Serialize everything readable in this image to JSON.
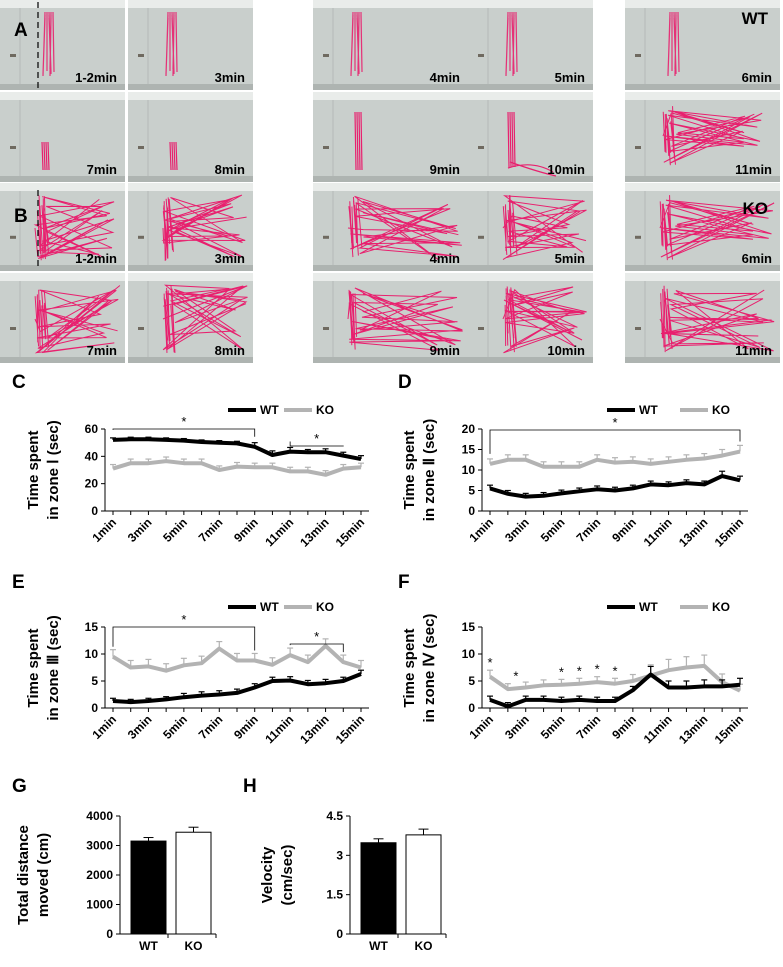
{
  "panel_a": {
    "label": "A",
    "group": "WT",
    "tiles": [
      "1-2min",
      "3min",
      "4min",
      "5min",
      "6min",
      "7min",
      "8min",
      "9min",
      "10min",
      "11min"
    ]
  },
  "panel_b": {
    "label": "B",
    "group": "KO",
    "tiles": [
      "1-2min",
      "3min",
      "4min",
      "5min",
      "6min",
      "7min",
      "8min",
      "9min",
      "10min",
      "11min"
    ]
  },
  "colors": {
    "track": "#e8206e",
    "wt": "#000000",
    "ko": "#b3b3b3"
  },
  "chart_data": [
    {
      "id": "C",
      "type": "line",
      "label": "C",
      "ylabel": [
        "Time spent",
        "in zone Ⅰ (sec)"
      ],
      "ylim": [
        0,
        60
      ],
      "yticks": [
        "0",
        "20",
        "40",
        "60"
      ],
      "x": [
        1,
        2,
        3,
        4,
        5,
        6,
        7,
        8,
        9,
        10,
        11,
        12,
        13,
        14,
        15
      ],
      "xticklabels": [
        "1min",
        "3min",
        "5min",
        "7min",
        "9min",
        "11min",
        "13min",
        "15min"
      ],
      "series": [
        {
          "name": "WT",
          "values": [
            52,
            52.5,
            52.5,
            52,
            51.5,
            50.5,
            50,
            49.5,
            47,
            41,
            43.5,
            43,
            43,
            40.5,
            38
          ],
          "err": [
            1.5,
            1.5,
            1.5,
            1.5,
            1.5,
            1.5,
            1.5,
            1.5,
            3,
            3,
            3,
            2,
            2.5,
            2.5,
            2.5
          ]
        },
        {
          "name": "KO",
          "values": [
            31,
            35,
            35,
            36.5,
            35,
            35,
            30,
            32.5,
            32,
            32,
            29,
            29,
            26.5,
            31,
            32
          ],
          "err": [
            3,
            3,
            3,
            3,
            3,
            3,
            3,
            3,
            3,
            3,
            3,
            3,
            3,
            3,
            3
          ]
        }
      ],
      "sig": [
        {
          "from": 1,
          "to": 9,
          "text": "*"
        },
        {
          "from": 11,
          "to": 14,
          "text": "*"
        }
      ],
      "legend": "top-right"
    },
    {
      "id": "D",
      "type": "line",
      "label": "D",
      "ylabel": [
        "Time spent",
        "in zone Ⅱ (sec)"
      ],
      "ylim": [
        0,
        20
      ],
      "yticks": [
        "0",
        "5",
        "10",
        "15",
        "20"
      ],
      "x": [
        1,
        2,
        3,
        4,
        5,
        6,
        7,
        8,
        9,
        10,
        11,
        12,
        13,
        14,
        15
      ],
      "xticklabels": [
        "1min",
        "3min",
        "5min",
        "7min",
        "9min",
        "11min",
        "13min",
        "15min"
      ],
      "series": [
        {
          "name": "WT",
          "values": [
            5.5,
            4.2,
            3.5,
            3.7,
            4.3,
            4.8,
            5.3,
            5,
            5.5,
            6.5,
            6.3,
            6.8,
            6.5,
            8.5,
            7.5
          ],
          "err": [
            0.8,
            0.8,
            0.8,
            0.8,
            0.8,
            0.8,
            0.8,
            0.8,
            0.8,
            0.8,
            0.8,
            0.8,
            0.8,
            1.2,
            1.0
          ]
        },
        {
          "name": "KO",
          "values": [
            11.5,
            12.5,
            12.5,
            10.8,
            10.8,
            10.8,
            12.5,
            11.8,
            12,
            11.5,
            12,
            12.5,
            12.8,
            13.5,
            14.5
          ],
          "err": [
            1.2,
            1.2,
            1.2,
            1.2,
            1.2,
            1.2,
            1.2,
            1.2,
            1.2,
            1.2,
            1.2,
            1.2,
            1.2,
            1.5,
            1.5
          ]
        }
      ],
      "sig": [
        {
          "from": 1,
          "to": 15,
          "text": "*"
        }
      ],
      "legend": "top-right"
    },
    {
      "id": "E",
      "type": "line",
      "label": "E",
      "ylabel": [
        "Time spent",
        "in zone Ⅲ (sec)"
      ],
      "ylim": [
        0,
        15
      ],
      "yticks": [
        "0",
        "5",
        "10",
        "15"
      ],
      "x": [
        1,
        2,
        3,
        4,
        5,
        6,
        7,
        8,
        9,
        10,
        11,
        12,
        13,
        14,
        15
      ],
      "xticklabels": [
        "1min",
        "3min",
        "5min",
        "7min",
        "9min",
        "11min",
        "13min",
        "15min"
      ],
      "series": [
        {
          "name": "WT",
          "values": [
            1.3,
            1.1,
            1.3,
            1.6,
            2,
            2.3,
            2.5,
            2.8,
            3.8,
            5,
            5.1,
            4.4,
            4.6,
            5,
            6.3
          ],
          "err": [
            0.5,
            0.5,
            0.5,
            0.5,
            0.7,
            0.7,
            0.7,
            0.7,
            0.7,
            0.7,
            0.7,
            0.7,
            0.7,
            0.7,
            0.7
          ]
        },
        {
          "name": "KO",
          "values": [
            9.5,
            7.5,
            7.7,
            6.9,
            7.9,
            8.3,
            11,
            8.8,
            8.8,
            8,
            9.8,
            8.5,
            11.5,
            8.5,
            7.5
          ],
          "err": [
            1.3,
            1.3,
            1.3,
            1.3,
            1.3,
            1.3,
            1.3,
            1.3,
            1.3,
            1.3,
            1.3,
            1.3,
            1.3,
            1.3,
            1.3
          ]
        }
      ],
      "sig": [
        {
          "from": 1,
          "to": 9,
          "text": "*"
        },
        {
          "from": 11,
          "to": 14,
          "text": "*"
        }
      ],
      "legend": "top-right"
    },
    {
      "id": "F",
      "type": "line",
      "label": "F",
      "ylabel": [
        "Time spent",
        "in zone Ⅳ (sec)"
      ],
      "ylim": [
        0,
        15
      ],
      "yticks": [
        "0",
        "5",
        "10",
        "15"
      ],
      "x": [
        1,
        2,
        3,
        4,
        5,
        6,
        7,
        8,
        9,
        10,
        11,
        12,
        13,
        14,
        15
      ],
      "xticklabels": [
        "1min",
        "3min",
        "5min",
        "7min",
        "9min",
        "11min",
        "13min",
        "15min"
      ],
      "series": [
        {
          "name": "WT",
          "values": [
            1.5,
            0.3,
            1.5,
            1.5,
            1.3,
            1.5,
            1.3,
            1.3,
            3.3,
            6.2,
            3.8,
            3.8,
            4,
            4,
            4.3
          ],
          "err": [
            0.7,
            0.7,
            0.7,
            0.7,
            0.7,
            0.7,
            0.7,
            0.7,
            0.7,
            1.5,
            1.2,
            1.2,
            1.2,
            1.2,
            1.2
          ]
        },
        {
          "name": "KO",
          "values": [
            5.8,
            3.5,
            3.8,
            4.2,
            4.3,
            4.5,
            4.8,
            4.5,
            5,
            6,
            7,
            7.5,
            7.8,
            4.8,
            3.2
          ],
          "err": [
            1.2,
            1,
            1,
            1,
            1,
            1,
            1,
            1,
            1.2,
            2,
            2,
            2,
            2,
            1.5,
            1.2
          ]
        }
      ],
      "sig_points": [
        {
          "x": 1,
          "text": "*"
        },
        {
          "x": 2,
          "text": "*"
        },
        {
          "x": 5,
          "text": "*"
        },
        {
          "x": 6,
          "text": "*"
        },
        {
          "x": 7,
          "text": "*"
        },
        {
          "x": 8,
          "text": "*"
        }
      ],
      "legend": "top-right"
    },
    {
      "id": "G",
      "type": "bar",
      "label": "G",
      "ylabel": [
        "Total distance",
        "moved (cm)"
      ],
      "ylim": [
        0,
        4000
      ],
      "yticks": [
        "0",
        "1000",
        "2000",
        "3000",
        "4000"
      ],
      "categories": [
        "WT",
        "KO"
      ],
      "values": [
        3150,
        3450
      ],
      "err": [
        120,
        170
      ],
      "colors": [
        "#000000",
        "#ffffff"
      ]
    },
    {
      "id": "H",
      "type": "bar",
      "label": "H",
      "ylabel": [
        "Velocity",
        "(cm/sec)"
      ],
      "ylim": [
        0,
        4.5
      ],
      "yticks": [
        "0",
        "1.5",
        "3",
        "4.5"
      ],
      "categories": [
        "WT",
        "KO"
      ],
      "values": [
        3.48,
        3.78
      ],
      "err": [
        0.15,
        0.22
      ],
      "colors": [
        "#000000",
        "#ffffff"
      ]
    }
  ]
}
